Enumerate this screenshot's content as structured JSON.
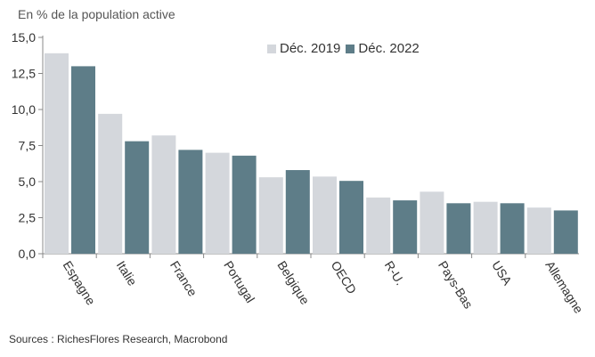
{
  "chart_data": {
    "type": "bar",
    "ylabel": "En % de la population active",
    "categories": [
      "Espagne",
      "Italie",
      "France",
      "Portugal",
      "Belgique",
      "OECD",
      "R-U.",
      "Pays-Bas",
      "USA",
      "Allemagne"
    ],
    "series": [
      {
        "name": "Déc. 2019",
        "color": "#d4d7dc",
        "values": [
          13.9,
          9.7,
          8.2,
          7.0,
          5.3,
          5.35,
          3.9,
          4.3,
          3.6,
          3.2
        ]
      },
      {
        "name": "Déc. 2022",
        "color": "#5e7d88",
        "values": [
          13.0,
          7.8,
          7.2,
          6.8,
          5.8,
          5.05,
          3.7,
          3.5,
          3.5,
          3.0
        ]
      }
    ],
    "ylim": [
      0,
      15
    ],
    "yticks": [
      "0,0",
      "2,5",
      "5,0",
      "7,5",
      "10,0",
      "12,5",
      "15,0"
    ],
    "grid": false,
    "legend_position": "top-right"
  },
  "source": "Sources : RichesFlores Research, Macrobond"
}
